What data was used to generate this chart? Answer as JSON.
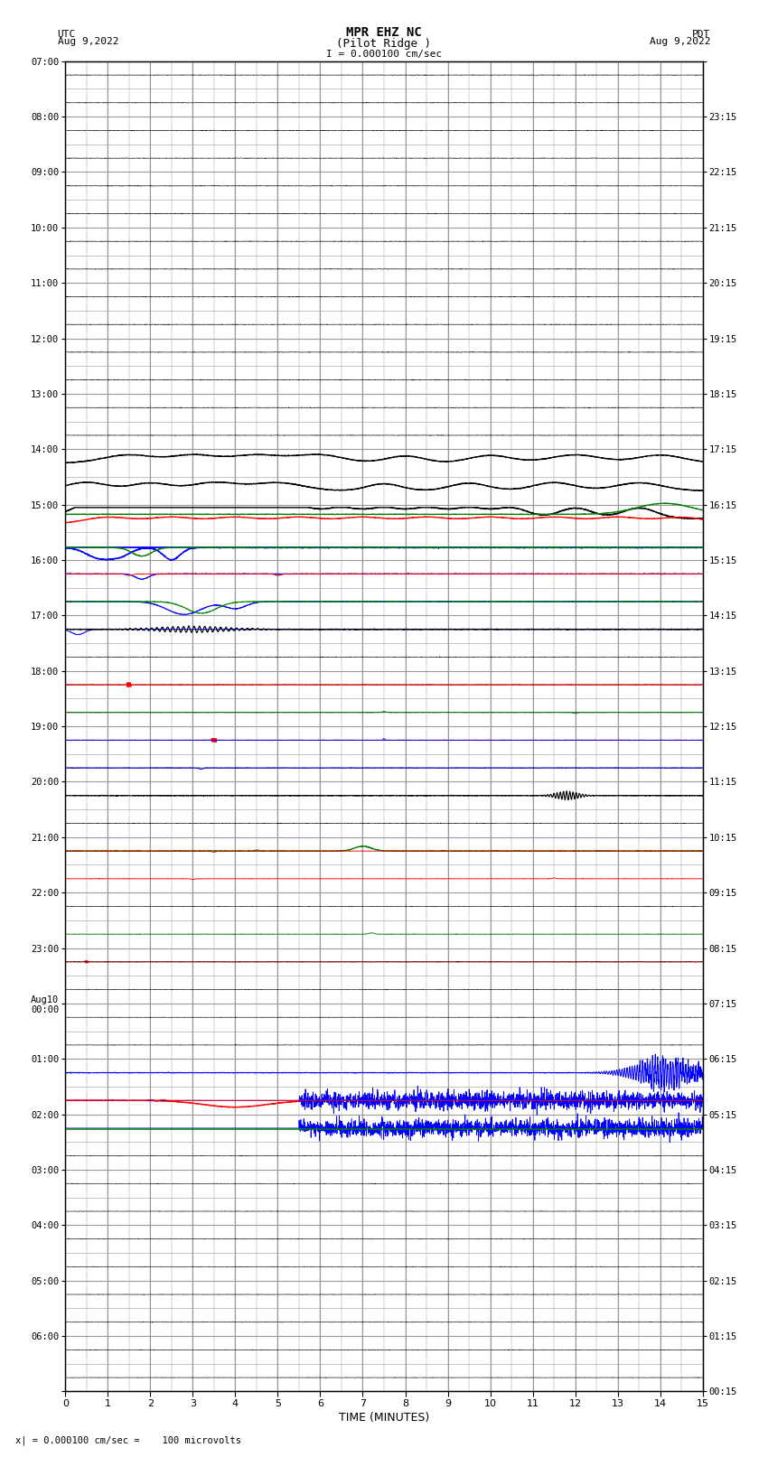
{
  "title_line1": "MPR EHZ NC",
  "title_line2": "(Pilot Ridge )",
  "title_line3": "I = 0.000100 cm/sec",
  "left_header": "UTC\nAug 9,2022",
  "right_header": "PDT\nAug 9,2022",
  "bottom_label": "TIME (MINUTES)",
  "bottom_footnote": "x| = 0.000100 cm/sec =    100 microvolts",
  "bg_color": "#ffffff",
  "grid_color": "#999999",
  "xmin": 0,
  "xmax": 15,
  "num_rows": 48,
  "utc_labels_even": [
    "07:00",
    "08:00",
    "09:00",
    "10:00",
    "11:00",
    "12:00",
    "13:00",
    "14:00",
    "15:00",
    "16:00",
    "17:00",
    "18:00",
    "19:00",
    "20:00",
    "21:00",
    "22:00",
    "23:00",
    "Aug10\n00:00",
    "01:00",
    "02:00",
    "03:00",
    "04:00",
    "05:00",
    "06:00"
  ],
  "pdt_labels_even": [
    "00:15",
    "01:15",
    "02:15",
    "03:15",
    "04:15",
    "05:15",
    "06:15",
    "07:15",
    "08:15",
    "09:15",
    "10:15",
    "11:15",
    "12:15",
    "13:15",
    "14:15",
    "15:15",
    "16:15",
    "17:15",
    "18:15",
    "19:15",
    "20:15",
    "21:15",
    "22:15",
    "23:15"
  ]
}
